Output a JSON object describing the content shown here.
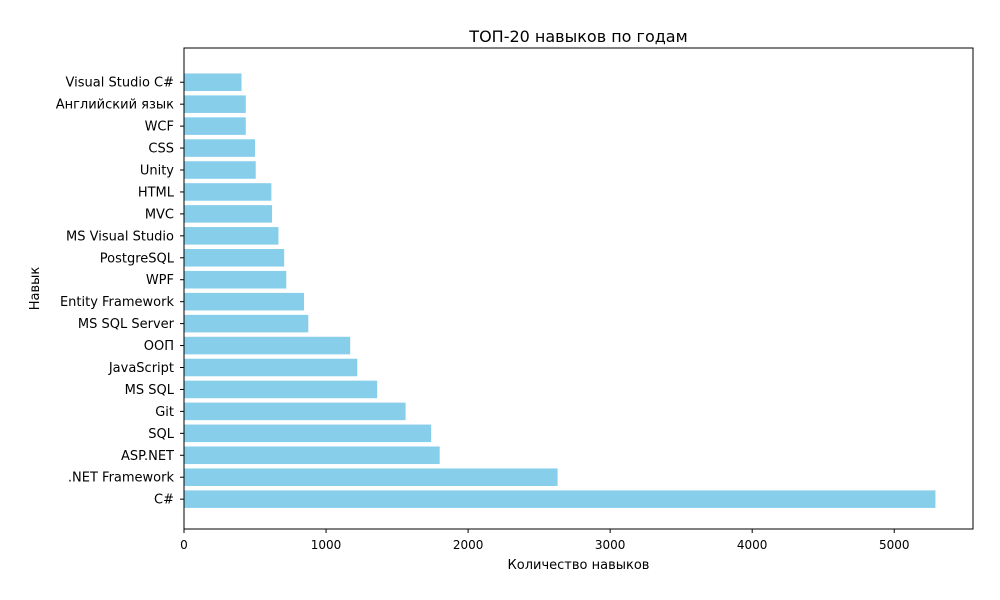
{
  "chart_data": {
    "type": "bar",
    "orientation": "horizontal",
    "title": "ТОП-20 навыков по годам",
    "xlabel": "Количество навыков",
    "ylabel": "Навык",
    "categories": [
      "C#",
      ".NET Framework",
      "ASP.NET",
      "SQL",
      "Git",
      "MS SQL",
      "JavaScript",
      "ООП",
      "MS SQL Server",
      "Entity Framework",
      "WPF",
      "PostgreSQL",
      "MS Visual Studio",
      "MVC",
      "HTML",
      "Unity",
      "CSS",
      "WCF",
      "Английский язык",
      "Visual Studio C#"
    ],
    "values": [
      5290,
      2630,
      1800,
      1740,
      1560,
      1360,
      1220,
      1170,
      875,
      845,
      720,
      705,
      665,
      620,
      615,
      505,
      500,
      435,
      435,
      405
    ],
    "xlim": [
      0,
      5554.5
    ],
    "xticks": [
      0,
      1000,
      2000,
      3000,
      4000,
      5000
    ],
    "bar_color": "#87ceeb",
    "grid": false,
    "legend": false
  }
}
